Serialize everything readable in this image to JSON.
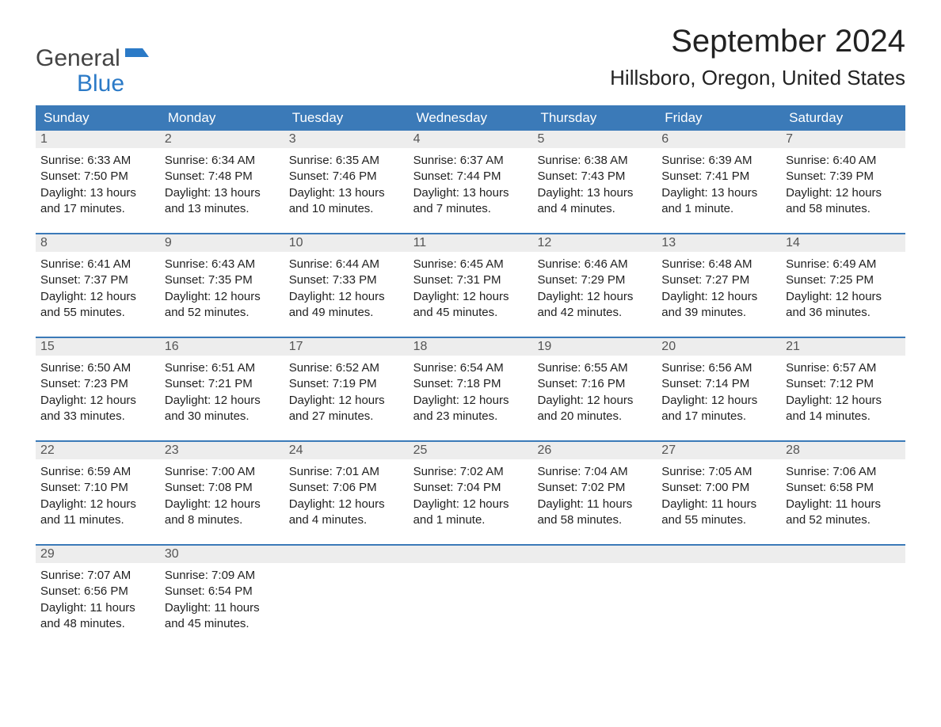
{
  "logo": {
    "line1": "General",
    "line2": "Blue",
    "flag_color": "#2b7ac7"
  },
  "title": "September 2024",
  "location": "Hillsboro, Oregon, United States",
  "colors": {
    "header_bg": "#3b7ab8",
    "header_text": "#ffffff",
    "daynum_bg": "#ededed",
    "daynum_text": "#555555",
    "body_text": "#222222",
    "week_divider": "#3b7ab8",
    "accent": "#2b7ac7"
  },
  "typography": {
    "title_fontsize": 40,
    "location_fontsize": 26,
    "dayheader_fontsize": 17,
    "body_fontsize": 15
  },
  "day_headers": [
    "Sunday",
    "Monday",
    "Tuesday",
    "Wednesday",
    "Thursday",
    "Friday",
    "Saturday"
  ],
  "weeks": [
    [
      {
        "n": "1",
        "sunrise": "6:33 AM",
        "sunset": "7:50 PM",
        "daylight": "13 hours and 17 minutes."
      },
      {
        "n": "2",
        "sunrise": "6:34 AM",
        "sunset": "7:48 PM",
        "daylight": "13 hours and 13 minutes."
      },
      {
        "n": "3",
        "sunrise": "6:35 AM",
        "sunset": "7:46 PM",
        "daylight": "13 hours and 10 minutes."
      },
      {
        "n": "4",
        "sunrise": "6:37 AM",
        "sunset": "7:44 PM",
        "daylight": "13 hours and 7 minutes."
      },
      {
        "n": "5",
        "sunrise": "6:38 AM",
        "sunset": "7:43 PM",
        "daylight": "13 hours and 4 minutes."
      },
      {
        "n": "6",
        "sunrise": "6:39 AM",
        "sunset": "7:41 PM",
        "daylight": "13 hours and 1 minute."
      },
      {
        "n": "7",
        "sunrise": "6:40 AM",
        "sunset": "7:39 PM",
        "daylight": "12 hours and 58 minutes."
      }
    ],
    [
      {
        "n": "8",
        "sunrise": "6:41 AM",
        "sunset": "7:37 PM",
        "daylight": "12 hours and 55 minutes."
      },
      {
        "n": "9",
        "sunrise": "6:43 AM",
        "sunset": "7:35 PM",
        "daylight": "12 hours and 52 minutes."
      },
      {
        "n": "10",
        "sunrise": "6:44 AM",
        "sunset": "7:33 PM",
        "daylight": "12 hours and 49 minutes."
      },
      {
        "n": "11",
        "sunrise": "6:45 AM",
        "sunset": "7:31 PM",
        "daylight": "12 hours and 45 minutes."
      },
      {
        "n": "12",
        "sunrise": "6:46 AM",
        "sunset": "7:29 PM",
        "daylight": "12 hours and 42 minutes."
      },
      {
        "n": "13",
        "sunrise": "6:48 AM",
        "sunset": "7:27 PM",
        "daylight": "12 hours and 39 minutes."
      },
      {
        "n": "14",
        "sunrise": "6:49 AM",
        "sunset": "7:25 PM",
        "daylight": "12 hours and 36 minutes."
      }
    ],
    [
      {
        "n": "15",
        "sunrise": "6:50 AM",
        "sunset": "7:23 PM",
        "daylight": "12 hours and 33 minutes."
      },
      {
        "n": "16",
        "sunrise": "6:51 AM",
        "sunset": "7:21 PM",
        "daylight": "12 hours and 30 minutes."
      },
      {
        "n": "17",
        "sunrise": "6:52 AM",
        "sunset": "7:19 PM",
        "daylight": "12 hours and 27 minutes."
      },
      {
        "n": "18",
        "sunrise": "6:54 AM",
        "sunset": "7:18 PM",
        "daylight": "12 hours and 23 minutes."
      },
      {
        "n": "19",
        "sunrise": "6:55 AM",
        "sunset": "7:16 PM",
        "daylight": "12 hours and 20 minutes."
      },
      {
        "n": "20",
        "sunrise": "6:56 AM",
        "sunset": "7:14 PM",
        "daylight": "12 hours and 17 minutes."
      },
      {
        "n": "21",
        "sunrise": "6:57 AM",
        "sunset": "7:12 PM",
        "daylight": "12 hours and 14 minutes."
      }
    ],
    [
      {
        "n": "22",
        "sunrise": "6:59 AM",
        "sunset": "7:10 PM",
        "daylight": "12 hours and 11 minutes."
      },
      {
        "n": "23",
        "sunrise": "7:00 AM",
        "sunset": "7:08 PM",
        "daylight": "12 hours and 8 minutes."
      },
      {
        "n": "24",
        "sunrise": "7:01 AM",
        "sunset": "7:06 PM",
        "daylight": "12 hours and 4 minutes."
      },
      {
        "n": "25",
        "sunrise": "7:02 AM",
        "sunset": "7:04 PM",
        "daylight": "12 hours and 1 minute."
      },
      {
        "n": "26",
        "sunrise": "7:04 AM",
        "sunset": "7:02 PM",
        "daylight": "11 hours and 58 minutes."
      },
      {
        "n": "27",
        "sunrise": "7:05 AM",
        "sunset": "7:00 PM",
        "daylight": "11 hours and 55 minutes."
      },
      {
        "n": "28",
        "sunrise": "7:06 AM",
        "sunset": "6:58 PM",
        "daylight": "11 hours and 52 minutes."
      }
    ],
    [
      {
        "n": "29",
        "sunrise": "7:07 AM",
        "sunset": "6:56 PM",
        "daylight": "11 hours and 48 minutes."
      },
      {
        "n": "30",
        "sunrise": "7:09 AM",
        "sunset": "6:54 PM",
        "daylight": "11 hours and 45 minutes."
      },
      null,
      null,
      null,
      null,
      null
    ]
  ],
  "labels": {
    "sunrise": "Sunrise: ",
    "sunset": "Sunset: ",
    "daylight": "Daylight: "
  }
}
